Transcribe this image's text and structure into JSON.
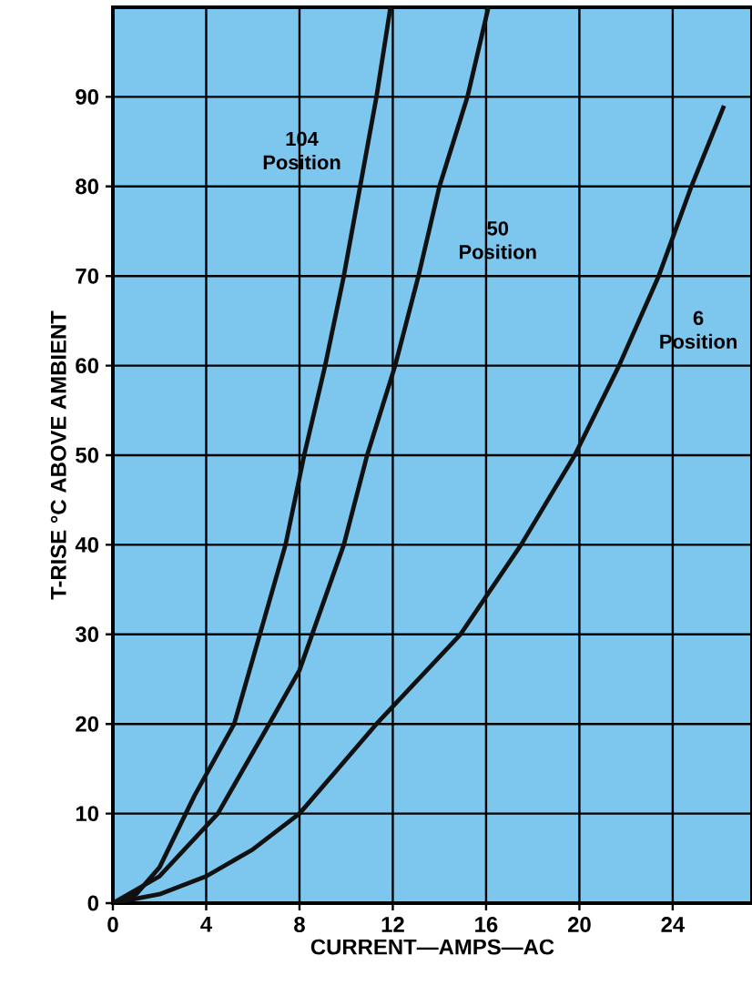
{
  "chart_data": {
    "type": "line",
    "xlabel": "CURRENT—AMPS—AC",
    "ylabel": "T-RISE °C ABOVE AMBIENT",
    "xlim": [
      0,
      27.4
    ],
    "ylim": [
      0,
      100
    ],
    "xticks": [
      0,
      4,
      8,
      12,
      16,
      20,
      24
    ],
    "yticks": [
      0,
      10,
      20,
      30,
      40,
      50,
      60,
      70,
      80,
      90
    ],
    "grid": true,
    "legend": false,
    "marker": "none",
    "line_style": "solid",
    "series": [
      {
        "name": "104 Position",
        "color": "#111111",
        "x": [
          0,
          1,
          2,
          3.5,
          5.2,
          6.3,
          7.4,
          8.2,
          9.1,
          9.9,
          10.6,
          11.3,
          11.9
        ],
        "values": [
          0,
          1,
          4,
          12,
          20,
          30,
          40,
          50,
          60,
          70,
          80,
          90,
          100
        ]
      },
      {
        "name": "50 Position",
        "color": "#111111",
        "x": [
          0,
          2,
          4.5,
          6.7,
          8,
          9.9,
          10.9,
          12.1,
          13.1,
          14,
          15.2,
          16.1
        ],
        "values": [
          0,
          3,
          10,
          20,
          26,
          40,
          50,
          60,
          70,
          80,
          90,
          100
        ]
      },
      {
        "name": "6 Position",
        "color": "#111111",
        "x": [
          0,
          2,
          4,
          6,
          8,
          11.3,
          14.9,
          17.5,
          19.8,
          21.7,
          23.4,
          24.8,
          26.2
        ],
        "values": [
          0,
          1,
          3,
          6,
          10,
          20,
          30,
          40,
          50,
          60,
          70,
          80,
          89
        ]
      }
    ]
  }
}
